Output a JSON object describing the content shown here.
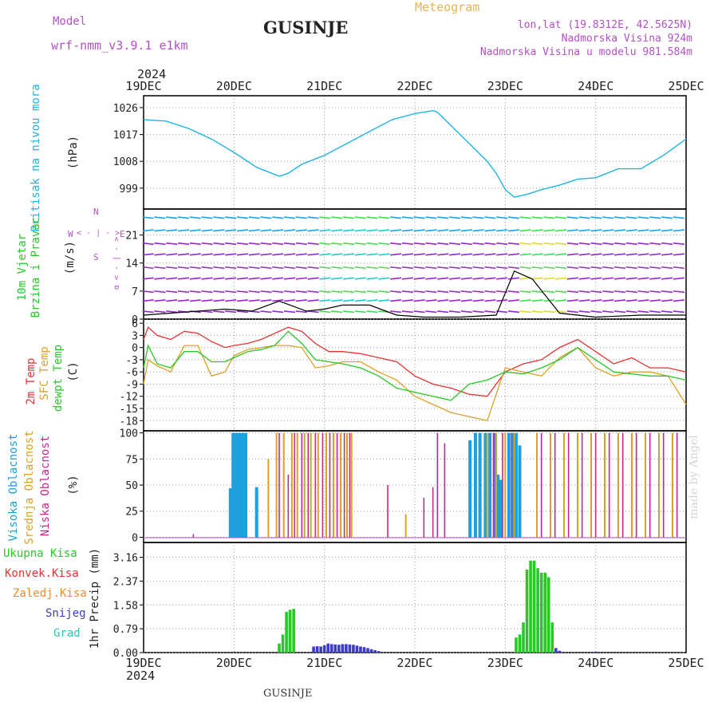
{
  "header": {
    "model_label": "Model",
    "model_name": "wrf-nmm_v3.9.1 e1km",
    "title": "GUSINJE",
    "meteogram": "Meteogram",
    "lonlat": "lon,lat (19.8312E, 42.5625N)",
    "altitude": "Nadmorska Visina 924m",
    "model_altitude": "Nadmorska Visina u modelu 981.584m",
    "year_top": "2024",
    "year_bottom": "2024",
    "footer_title": "GUSINJE",
    "credit": "made by Angel"
  },
  "colors": {
    "pressure": "#1eb4e6",
    "t2m": "#e63232",
    "sfc": "#dca028",
    "dew": "#28c828",
    "high_cloud": "#1ea0dc",
    "mid_cloud": "#dca028",
    "low_cloud": "#c8288c",
    "precip_total": "#28c828",
    "precip_conv": "#e63232",
    "precip_frz": "#f08c28",
    "snow": "#3c3cc8",
    "grad": "#28c8b4",
    "wind_label": "#28c828",
    "compass": "#b450c8"
  },
  "x_ticks": [
    "19DEC",
    "20DEC",
    "21DEC",
    "22DEC",
    "23DEC",
    "24DEC",
    "25DEC"
  ],
  "chart_data": [
    {
      "type": "line",
      "name": "pressure",
      "ylabel_lines": [
        "Pritisak na nivou mora",
        "(hPa)"
      ],
      "yticks": [
        999,
        1008,
        1017,
        1026
      ],
      "ylim": [
        992,
        1030
      ],
      "x": [
        0,
        0.25,
        0.5,
        0.75,
        1.0,
        1.25,
        1.5,
        1.6,
        1.75,
        2.0,
        2.25,
        2.5,
        2.75,
        3.0,
        3.2,
        3.25,
        3.4,
        3.6,
        3.8,
        3.9,
        4.0,
        4.1,
        4.25,
        4.4,
        4.6,
        4.8,
        5.0,
        5.25,
        5.5,
        5.75,
        6.0
      ],
      "values": [
        1022,
        1021.5,
        1019,
        1015.5,
        1011,
        1006,
        1003,
        1004,
        1007,
        1010,
        1014,
        1018,
        1022,
        1024,
        1025,
        1024.5,
        1020,
        1014,
        1008,
        1004,
        998.5,
        996,
        997,
        998.5,
        1000,
        1002,
        1002.5,
        1005.5,
        1005.5,
        1010,
        1015.5
      ]
    },
    {
      "type": "line",
      "name": "wind",
      "ylabel_lines": [
        "10m Vjetar",
        "Brzina i Pravac",
        "(m/s)"
      ],
      "compass": [
        "N",
        "E",
        "S",
        "W"
      ],
      "compass_symbols": [
        "< - | - >",
        "α < - | - >"
      ],
      "yticks": [
        0,
        7,
        14,
        21
      ],
      "ylim": [
        0,
        27.5
      ],
      "x": [
        0,
        0.3,
        0.6,
        0.9,
        1.2,
        1.5,
        1.8,
        2.0,
        2.2,
        2.5,
        2.8,
        3.1,
        3.5,
        3.9,
        4.1,
        4.3,
        4.6,
        5.0,
        5.5,
        6.0
      ],
      "values": [
        1,
        1.5,
        2,
        2.5,
        2,
        4.5,
        2,
        2.5,
        3.5,
        3.5,
        1,
        0.5,
        0.5,
        1,
        12,
        10,
        1.5,
        0.5,
        1,
        1
      ]
    },
    {
      "type": "line",
      "name": "temperature",
      "ylabel_lines": [
        "2m Temp",
        "SFC Temp",
        "dewpt Temp",
        "(C)"
      ],
      "yticks": [
        6,
        3,
        0,
        -3,
        -6,
        -9,
        -12,
        -15,
        -18
      ],
      "ylim": [
        -20.5,
        7
      ],
      "x": [
        0,
        0.05,
        0.15,
        0.3,
        0.45,
        0.6,
        0.75,
        0.9,
        1.0,
        1.15,
        1.3,
        1.45,
        1.6,
        1.75,
        1.9,
        2.05,
        2.2,
        2.4,
        2.6,
        2.8,
        3.0,
        3.2,
        3.4,
        3.6,
        3.8,
        4.0,
        4.2,
        4.4,
        4.6,
        4.8,
        5.0,
        5.2,
        5.4,
        5.6,
        5.8,
        6.0
      ],
      "series": [
        {
          "name": "2m Temp",
          "values": [
            2,
            5,
            3,
            2,
            4,
            3.5,
            1.5,
            0,
            0.5,
            1,
            2,
            3.5,
            5,
            4,
            1,
            -1,
            -1,
            -1.5,
            -2.5,
            -3.5,
            -7,
            -9,
            -10,
            -11.5,
            -12,
            -6,
            -4,
            -3,
            0,
            2,
            -1,
            -4,
            -2.5,
            -5,
            -5,
            -6
          ]
        },
        {
          "name": "SFC Temp",
          "values": [
            -9,
            -3,
            -4.5,
            -6,
            0.5,
            0.5,
            -7,
            -6,
            -2,
            -0.5,
            0,
            0.5,
            0.5,
            0,
            -5,
            -4.5,
            -3.5,
            -3.5,
            -6,
            -8,
            -12,
            -14,
            -16,
            -17,
            -18,
            -5,
            -6,
            -7,
            -2.5,
            0,
            -5,
            -7,
            -6,
            -6,
            -7,
            -14
          ]
        },
        {
          "name": "dewpt Temp",
          "values": [
            -5,
            0.5,
            -4,
            -5,
            -1,
            -1,
            -3.5,
            -3.5,
            -2.5,
            -1,
            -0.5,
            0.5,
            4,
            1,
            -3,
            -3.5,
            -4,
            -5,
            -7,
            -10,
            -11,
            -12,
            -13,
            -9,
            -8,
            -6,
            -6.5,
            -5,
            -3,
            0,
            -3,
            -6,
            -6.5,
            -7,
            -7,
            -8
          ]
        }
      ]
    },
    {
      "type": "bar",
      "name": "clouds",
      "ylabel_lines": [
        "Visoka Oblacnost",
        "Srednja Oblacnost",
        "Niska Oblacnost",
        "(%)"
      ],
      "yticks": [
        0,
        25,
        50,
        75,
        100
      ],
      "ylim": [
        -5,
        102
      ],
      "series": [
        {
          "name": "Visoka Oblacnost",
          "x": [
            0.96,
            0.99,
            1.02,
            1.05,
            1.08,
            1.1,
            1.13,
            1.25,
            3.61,
            3.67,
            3.72,
            3.78,
            3.83,
            3.88,
            3.92,
            3.95,
            4.04,
            4.08,
            4.12,
            4.16
          ],
          "values": [
            47,
            100,
            100,
            100,
            100,
            100,
            100,
            48,
            93,
            100,
            100,
            100,
            100,
            100,
            60,
            55,
            100,
            100,
            100,
            88
          ]
        },
        {
          "name": "Srednja Oblacnost",
          "x": [
            1.38,
            1.47,
            1.55,
            1.64,
            1.7,
            1.78,
            1.85,
            1.93,
            2.02,
            2.1,
            2.18,
            2.25,
            2.3,
            2.9,
            3.8,
            3.9,
            4.0,
            4.1,
            4.35,
            4.5,
            4.65,
            4.8,
            4.95,
            5.1,
            5.25,
            5.4,
            5.55,
            5.7,
            5.85
          ],
          "values": [
            75,
            100,
            100,
            100,
            100,
            100,
            100,
            100,
            100,
            100,
            100,
            100,
            100,
            22,
            100,
            100,
            100,
            100,
            100,
            100,
            100,
            100,
            100,
            100,
            100,
            100,
            100,
            100,
            100
          ]
        },
        {
          "name": "Niska Oblacnost",
          "x": [
            0.55,
            1.5,
            1.6,
            1.67,
            1.75,
            1.82,
            1.9,
            1.98,
            2.06,
            2.14,
            2.22,
            2.28,
            2.7,
            3.1,
            3.2,
            3.25,
            3.33,
            3.87,
            3.97,
            4.07,
            4.4,
            4.55,
            4.7,
            4.85,
            5.0,
            5.15,
            5.3,
            5.45,
            5.6,
            5.75,
            5.9
          ],
          "values": [
            3,
            100,
            60,
            100,
            100,
            100,
            100,
            100,
            100,
            100,
            100,
            100,
            50,
            38,
            48,
            100,
            90,
            100,
            100,
            100,
            100,
            100,
            100,
            100,
            100,
            100,
            100,
            100,
            100,
            100,
            100
          ]
        }
      ]
    },
    {
      "type": "bar",
      "name": "precip",
      "ylabel_lines": [
        "1hr Precip (mm)"
      ],
      "legend": [
        "Ukupna Kisa",
        "Konvek.Kisa",
        "Zaledj.Kisa",
        "Snijeg",
        "Grad"
      ],
      "yticks": [
        0,
        0.79,
        1.58,
        2.37,
        3.16
      ],
      "ylim": [
        0,
        3.65
      ],
      "series": [
        {
          "name": "Ukupna Kisa",
          "x": [
            1.5,
            1.54,
            1.58,
            1.62,
            1.66,
            4.12,
            4.16,
            4.2,
            4.24,
            4.28,
            4.32,
            4.36,
            4.4,
            4.44,
            4.48,
            4.52
          ],
          "values": [
            0.3,
            0.6,
            1.35,
            1.42,
            1.45,
            0.5,
            0.6,
            1.0,
            2.75,
            3.05,
            3.05,
            2.8,
            2.65,
            2.65,
            2.5,
            1.0
          ]
        },
        {
          "name": "Snijeg",
          "x": [
            1.88,
            1.92,
            1.96,
            2.0,
            2.04,
            2.08,
            2.12,
            2.16,
            2.2,
            2.24,
            2.28,
            2.32,
            2.36,
            2.4,
            2.44,
            2.48,
            2.52,
            2.56,
            2.6,
            4.56,
            4.6,
            5.0
          ],
          "values": [
            0.2,
            0.21,
            0.2,
            0.24,
            0.3,
            0.28,
            0.27,
            0.26,
            0.28,
            0.28,
            0.27,
            0.26,
            0.23,
            0.2,
            0.18,
            0.15,
            0.11,
            0.08,
            0.05,
            0.15,
            0.06,
            0.03
          ]
        }
      ]
    }
  ]
}
